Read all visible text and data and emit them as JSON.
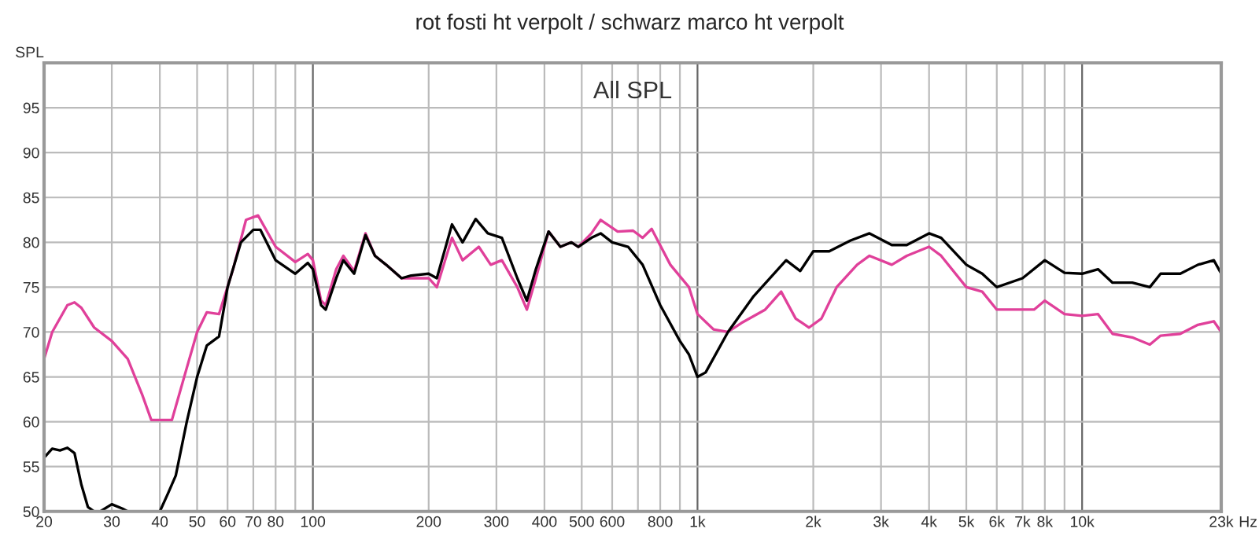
{
  "chart_data": {
    "type": "line",
    "title": "rot fosti ht verpolt / schwarz marco ht verpolt",
    "ylabel": "SPL",
    "annotations": [
      "All SPL"
    ],
    "log": "x",
    "grid": true,
    "xlim": [
      20,
      23000
    ],
    "ylim": [
      50,
      100
    ],
    "xticks": [
      20,
      30,
      40,
      50,
      60,
      70,
      80,
      {
        "value": 90,
        "label": null
      },
      100,
      200,
      300,
      400,
      500,
      600,
      {
        "value": 700,
        "label": null
      },
      800,
      {
        "value": 900,
        "label": null
      },
      {
        "value": 1000,
        "label": "1k"
      },
      {
        "value": 2000,
        "label": "2k"
      },
      {
        "value": 3000,
        "label": "3k"
      },
      {
        "value": 4000,
        "label": "4k"
      },
      {
        "value": 5000,
        "label": "5k"
      },
      {
        "value": 6000,
        "label": "6k"
      },
      {
        "value": 7000,
        "label": "7k"
      },
      {
        "value": 8000,
        "label": "8k"
      },
      {
        "value": 9000,
        "label": null
      },
      {
        "value": 10000,
        "label": "10k"
      },
      {
        "value": 23000,
        "label": "23k"
      }
    ],
    "xlabel": "Hz",
    "yticks": [
      50,
      55,
      60,
      65,
      70,
      75,
      80,
      85,
      90,
      95,
      {
        "value": 100,
        "label": null
      }
    ],
    "series": [
      {
        "color": "#e0409a",
        "x": [
          20,
          21,
          23,
          24,
          25,
          27,
          30,
          33,
          36,
          38,
          40,
          43,
          47,
          50,
          53,
          57,
          62,
          67,
          72,
          80,
          90,
          97,
          100,
          105,
          108,
          115,
          120,
          128,
          137,
          145,
          155,
          170,
          200,
          210,
          230,
          245,
          270,
          290,
          310,
          340,
          360,
          380,
          410,
          440,
          470,
          490,
          530,
          560,
          620,
          680,
          720,
          760,
          850,
          950,
          1000,
          1100,
          1200,
          1300,
          1500,
          1650,
          1800,
          1950,
          2100,
          2300,
          2600,
          2800,
          3200,
          3500,
          4000,
          4300,
          5000,
          5500,
          6000,
          7000,
          7500,
          8000,
          9000,
          10000,
          11000,
          12000,
          13500,
          15000,
          16000,
          18000,
          20000,
          22000,
          23000
        ],
        "values": [
          67,
          70,
          73,
          73.3,
          72.7,
          70.5,
          69,
          67,
          63,
          60.2,
          60.2,
          60.2,
          66,
          70,
          72.2,
          72,
          77,
          82.5,
          83,
          79.5,
          77.8,
          78.7,
          78,
          73.5,
          73,
          77,
          78.5,
          76.8,
          81,
          78.5,
          77.5,
          76,
          76,
          75,
          80.5,
          78,
          79.5,
          77.5,
          78,
          75,
          72.5,
          76,
          81.2,
          79.5,
          80,
          79.5,
          81,
          82.5,
          81.2,
          81.3,
          80.5,
          81.5,
          77.5,
          75,
          72,
          70.3,
          70,
          71,
          72.5,
          74.5,
          71.5,
          70.5,
          71.5,
          75,
          77.5,
          78.5,
          77.5,
          78.5,
          79.5,
          78.5,
          75,
          74.5,
          72.5,
          72.5,
          72.5,
          73.5,
          72,
          71.8,
          72,
          69.8,
          69.4,
          68.6,
          69.6,
          69.8,
          70.8,
          71.2,
          70
        ]
      },
      {
        "color": "#000000",
        "x": [
          20,
          21,
          22,
          23,
          24,
          25,
          26,
          27,
          28,
          30,
          32,
          33,
          40,
          42,
          44,
          47,
          50,
          53,
          57,
          60,
          65,
          70,
          73,
          80,
          90,
          97,
          100,
          105,
          108,
          115,
          120,
          128,
          137,
          145,
          155,
          170,
          180,
          200,
          210,
          230,
          245,
          265,
          285,
          310,
          340,
          360,
          380,
          410,
          440,
          470,
          490,
          530,
          560,
          600,
          660,
          720,
          800,
          900,
          950,
          1000,
          1050,
          1200,
          1400,
          1700,
          1850,
          2000,
          2200,
          2500,
          2800,
          3200,
          3500,
          4000,
          4300,
          5000,
          5500,
          6000,
          7000,
          8000,
          9000,
          10000,
          11000,
          12000,
          13500,
          15000,
          16000,
          18000,
          20000,
          22000,
          23000
        ],
        "values": [
          56,
          57,
          56.8,
          57.1,
          56.5,
          53,
          50.5,
          50,
          50,
          50.8,
          50.3,
          50,
          50,
          52,
          54,
          60,
          65,
          68.5,
          69.5,
          75,
          80,
          81.4,
          81.4,
          78,
          76.5,
          77.7,
          77,
          73,
          72.5,
          76,
          78,
          76.5,
          80.8,
          78.5,
          77.5,
          76,
          76.3,
          76.5,
          76,
          82,
          80,
          82.6,
          81,
          80.5,
          76,
          73.5,
          77,
          81.2,
          79.5,
          80,
          79.5,
          80.5,
          81,
          80,
          79.5,
          77.5,
          73,
          69,
          67.5,
          65,
          65.5,
          70,
          74,
          78,
          76.8,
          79,
          79,
          80.2,
          81,
          79.7,
          79.7,
          81,
          80.5,
          77.5,
          76.5,
          75,
          76,
          78,
          76.6,
          76.5,
          77,
          75.5,
          75.5,
          75,
          76.5,
          76.5,
          77.5,
          78,
          76.5
        ]
      }
    ]
  }
}
